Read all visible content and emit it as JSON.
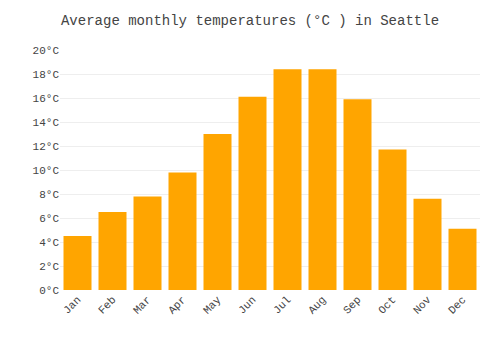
{
  "chart_data": {
    "type": "bar",
    "title": "Average monthly temperatures (°C ) in Seattle",
    "categories": [
      "Jan",
      "Feb",
      "Mar",
      "Apr",
      "May",
      "Jun",
      "Jul",
      "Aug",
      "Sep",
      "Oct",
      "Nov",
      "Dec"
    ],
    "values": [
      4.5,
      6.5,
      7.8,
      9.8,
      13.0,
      16.1,
      18.4,
      18.4,
      15.9,
      11.7,
      7.6,
      5.1
    ],
    "color": "#FFA500",
    "ylim": [
      0,
      20
    ],
    "yticks": [
      {
        "value": 0,
        "label": "0°C"
      },
      {
        "value": 2,
        "label": "2°C"
      },
      {
        "value": 4,
        "label": "4°C"
      },
      {
        "value": 6,
        "label": "6°C"
      },
      {
        "value": 8,
        "label": "8°C"
      },
      {
        "value": 10,
        "label": "10°C"
      },
      {
        "value": 12,
        "label": "12°C"
      },
      {
        "value": 14,
        "label": "14°C"
      },
      {
        "value": 16,
        "label": "16°C"
      },
      {
        "value": 18,
        "label": "18°C"
      },
      {
        "value": 20,
        "label": "20°C"
      }
    ],
    "grid": true
  }
}
